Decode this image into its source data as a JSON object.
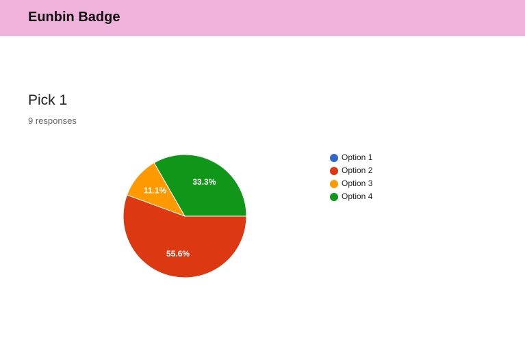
{
  "header": {
    "title": "Eunbin Badge"
  },
  "question": {
    "title": "Pick 1",
    "subtitle": "9 responses"
  },
  "chart_data": {
    "type": "pie",
    "categories": [
      "Option 1",
      "Option 2",
      "Option 3",
      "Option 4"
    ],
    "values": [
      0,
      55.6,
      11.1,
      33.3
    ],
    "value_labels": [
      null,
      "55.6%",
      "11.1%",
      "33.3%"
    ],
    "colors": [
      "#3366cc",
      "#dc3912",
      "#ff9900",
      "#109618"
    ],
    "legend": "right"
  }
}
